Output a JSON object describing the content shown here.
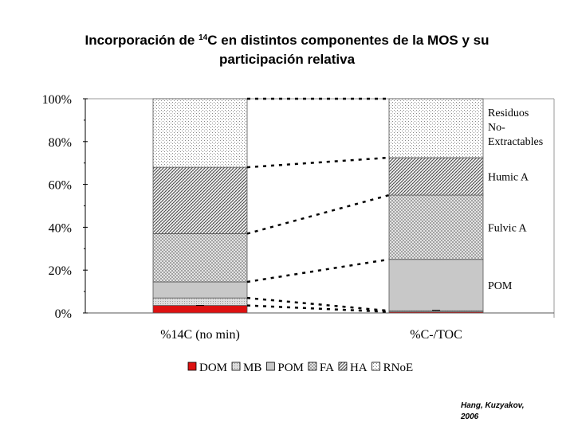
{
  "title": {
    "part1": "Incorporación de ",
    "superscript": "14",
    "part2": "C en distintos componentes de la  MOS y su",
    "line2": "participación relativa"
  },
  "credit": {
    "line1": "Hang, Kuzyakov,",
    "line2": "2006"
  },
  "colors": {
    "DOM": "#dd1111",
    "axis": "#000000",
    "frame": "#999999"
  },
  "chart_data": {
    "type": "bar",
    "stacked": true,
    "categories": [
      "%14C (no min)",
      "%C-/TOC"
    ],
    "ylim": [
      0,
      100
    ],
    "yticks": [
      "0%",
      "20%",
      "40%",
      "60%",
      "80%",
      "100%"
    ],
    "series": [
      {
        "name": "DOM",
        "values": [
          3.5,
          0.5
        ]
      },
      {
        "name": "MB",
        "values": [
          3.5,
          0.5
        ]
      },
      {
        "name": "POM",
        "values": [
          7.5,
          24
        ]
      },
      {
        "name": "FA",
        "values": [
          22.5,
          30
        ]
      },
      {
        "name": "HA",
        "values": [
          31,
          17.5
        ]
      },
      {
        "name": "RNoE",
        "values": [
          32,
          27.5
        ]
      }
    ],
    "segment_labels": [
      {
        "lines": [
          "Residuos",
          "No-",
          "Extractables"
        ]
      },
      {
        "lines": [
          "Humic A"
        ]
      },
      {
        "lines": [
          "Fulvic A"
        ]
      },
      {
        "lines": [
          "POM"
        ]
      }
    ],
    "legend": {
      "position": "bottom",
      "entries": [
        "DOM",
        "MB",
        "POM",
        "FA",
        "HA",
        "RNoE"
      ]
    },
    "grid": false
  }
}
